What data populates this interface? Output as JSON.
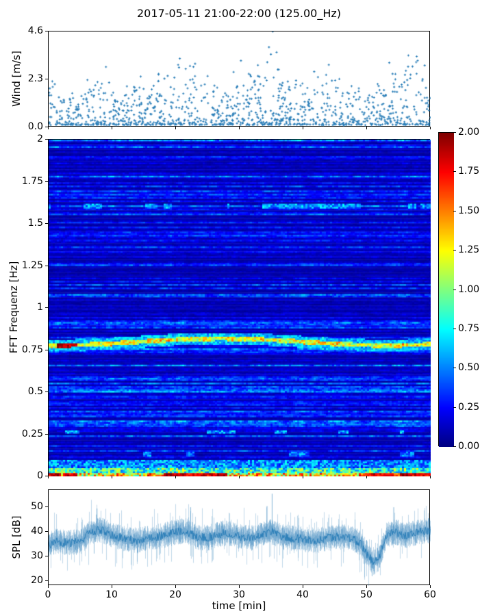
{
  "figure": {
    "title": "2017-05-11 21:00-22:00 (125.00_Hz)",
    "background_color": "#ffffff",
    "series_color": "#1f77b4",
    "colormap": "jet"
  },
  "chart_data": [
    {
      "id": "wind-scatter",
      "type": "scatter",
      "ylabel": "Wind [m/s]",
      "yticks": [
        "0.0",
        "2.3",
        "4.6"
      ],
      "ytick_values": [
        0,
        2.3,
        4.6
      ],
      "ylim": [
        0,
        4.6
      ],
      "xlim": [
        0,
        60
      ],
      "xticks_unlabeled": [
        0,
        10,
        20,
        30,
        40,
        50,
        60
      ],
      "marker": "plus",
      "color": "#1f77b4",
      "n_points": 1150,
      "envelope_x": [
        0,
        3,
        6,
        8,
        11,
        14,
        17,
        20,
        22,
        24,
        27,
        30,
        33,
        35,
        37,
        40,
        43,
        46,
        49,
        52,
        55,
        58,
        60
      ],
      "envelope_max": [
        2.2,
        1.5,
        2.4,
        2.3,
        1.8,
        2.2,
        2.4,
        2.8,
        3.0,
        2.3,
        2.1,
        2.5,
        2.9,
        3.9,
        2.5,
        2.2,
        2.6,
        2.1,
        1.7,
        1.9,
        2.9,
        3.1,
        2.4
      ],
      "outliers": [
        {
          "t": 35.2,
          "v": 4.6
        },
        {
          "t": 34.6,
          "v": 3.85
        },
        {
          "t": 35.8,
          "v": 3.6
        },
        {
          "t": 20.6,
          "v": 3.3
        },
        {
          "t": 56.5,
          "v": 3.45
        },
        {
          "t": 57.8,
          "v": 3.4
        },
        {
          "t": 30.2,
          "v": 3.2
        },
        {
          "t": 44.0,
          "v": 3.0
        },
        {
          "t": 23.0,
          "v": 3.05
        },
        {
          "t": 9.0,
          "v": 2.9
        },
        {
          "t": 53.5,
          "v": 3.1
        }
      ]
    },
    {
      "id": "fft-spectrogram",
      "type": "heatmap",
      "ylabel": "FFT Frequenz [Hz]",
      "yticks": [
        "2",
        "1.75",
        "1.5",
        "1.25",
        "1",
        "0.75",
        "0.5",
        "0.25",
        "0"
      ],
      "ytick_values": [
        2,
        1.75,
        1.5,
        1.25,
        1,
        0.75,
        0.5,
        0.25,
        0
      ],
      "ylim": [
        0,
        2
      ],
      "xlim": [
        0,
        60
      ],
      "xticks_unlabeled": [
        0,
        10,
        20,
        30,
        40,
        50,
        60
      ],
      "clim": [
        0,
        2
      ],
      "colormap": "jet",
      "colorbar_ticks": [
        "2.00",
        "1.75",
        "1.50",
        "1.25",
        "1.00",
        "0.75",
        "0.50",
        "0.25",
        "0.00"
      ],
      "colorbar_tick_values": [
        2,
        1.75,
        1.5,
        1.25,
        1,
        0.75,
        0.5,
        0.25,
        0
      ],
      "features": [
        {
          "name": "main-band",
          "freq_hz": 0.8,
          "wiggle_amp_hz": 0.02,
          "typical_value": 1.1,
          "red_segment_minutes": [
            1.5,
            4.5
          ]
        },
        {
          "name": "upper-band",
          "freq_hz": 1.6,
          "typical_value": 0.5,
          "intermittent": true
        },
        {
          "name": "low-freq-surface-band",
          "freq_range_hz": [
            0,
            0.1
          ],
          "typical_value": 1.2,
          "max_value": 2.0
        },
        {
          "name": "background",
          "value_range": [
            0.05,
            0.45
          ]
        }
      ]
    },
    {
      "id": "spl-line",
      "type": "line",
      "ylabel": "SPL [dB]",
      "xlabel": "time [min]",
      "yticks": [
        "50",
        "40",
        "30",
        "20"
      ],
      "ytick_values": [
        50,
        40,
        30,
        20
      ],
      "ylim": [
        18,
        57
      ],
      "xticks": [
        "0",
        "10",
        "20",
        "30",
        "40",
        "50",
        "60"
      ],
      "xtick_values": [
        0,
        10,
        20,
        30,
        40,
        50,
        60
      ],
      "xlim": [
        0,
        60
      ],
      "color": "#1f77b4",
      "noise_halfwidth_db": 4.5,
      "mean_x": [
        0,
        1,
        3,
        5,
        6.5,
        8,
        10,
        12,
        14,
        16,
        18,
        20,
        21.5,
        23,
        25,
        26.5,
        28,
        30,
        32,
        34,
        35,
        36.5,
        38,
        40,
        42,
        44,
        46,
        48,
        49,
        50,
        51,
        51.8,
        53,
        54.5,
        56,
        58,
        60
      ],
      "mean_y": [
        34.5,
        36,
        35.5,
        36,
        40,
        41,
        38.5,
        37,
        36.5,
        37.5,
        38.5,
        40,
        40.5,
        38,
        37.5,
        39,
        39.5,
        38,
        37.5,
        39.5,
        40,
        38,
        37.5,
        37,
        36.5,
        37.5,
        38,
        37,
        35,
        31,
        27.5,
        29,
        38.5,
        40,
        38.5,
        40,
        40.5
      ],
      "spikes": [
        {
          "t": 35.1,
          "v": 55.5
        },
        {
          "t": 7.6,
          "v": 49.5
        },
        {
          "t": 22.3,
          "v": 50.0
        },
        {
          "t": 34.3,
          "v": 50.5
        },
        {
          "t": 54.2,
          "v": 50.0
        },
        {
          "t": 50.8,
          "v": 22.0
        }
      ]
    }
  ]
}
